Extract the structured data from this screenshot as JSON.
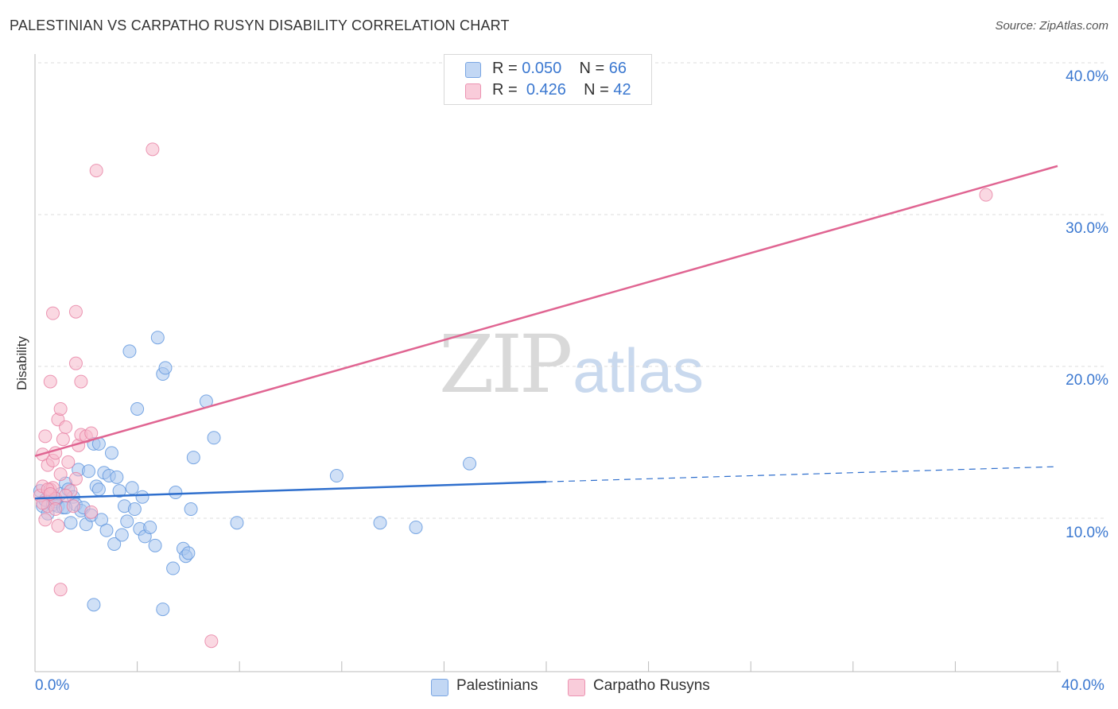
{
  "title": "PALESTINIAN VS CARPATHO RUSYN DISABILITY CORRELATION CHART",
  "source": "Source: ZipAtlas.com",
  "watermark": {
    "zip": "ZIP",
    "atlas": "atlas"
  },
  "legend": {
    "rows": [
      {
        "r_label": "R = ",
        "r_value": "0.050",
        "n_label": "N = ",
        "n_value": "66",
        "color": "#a9c6ef"
      },
      {
        "r_label": "R = ",
        "r_value": "0.426",
        "n_label": "N = ",
        "n_value": "42",
        "color": "#f5b8cb"
      }
    ]
  },
  "bottom_legend": [
    {
      "label": "Palestinians",
      "color": "#a9c6ef"
    },
    {
      "label": "Carpatho Rusyns",
      "color": "#f5b8cb"
    }
  ],
  "chart_data": {
    "type": "scatter",
    "title": "PALESTINIAN VS CARPATHO RUSYN DISABILITY CORRELATION CHART",
    "xlabel": "",
    "ylabel": "Disability",
    "xlim": [
      0,
      40
    ],
    "ylim": [
      0,
      40
    ],
    "x_tick_labels": [
      "0.0%",
      "40.0%"
    ],
    "y_ticks": [
      10,
      20,
      30,
      40
    ],
    "y_tick_labels": [
      "10.0%",
      "20.0%",
      "30.0%",
      "40.0%"
    ],
    "grid": true,
    "series": [
      {
        "name": "Palestinians",
        "color": "#5b93dd",
        "fill": "#a9c6ef",
        "trend": {
          "x0": 0,
          "y0": 11.3,
          "x1": 20,
          "y1": 12.4,
          "dash_x1": 40,
          "dash_y1": 13.4,
          "color": "#2f6fcd"
        },
        "points": [
          [
            0.2,
            11.8
          ],
          [
            0.3,
            10.8
          ],
          [
            0.4,
            11.2
          ],
          [
            0.5,
            10.3
          ],
          [
            0.6,
            11.5
          ],
          [
            0.7,
            10.9
          ],
          [
            0.8,
            11.1
          ],
          [
            0.9,
            10.8
          ],
          [
            1.0,
            11.6
          ],
          [
            1.1,
            10.7
          ],
          [
            1.2,
            12.3
          ],
          [
            1.3,
            11.9
          ],
          [
            1.4,
            9.7
          ],
          [
            1.5,
            11.4
          ],
          [
            1.6,
            10.9
          ],
          [
            1.7,
            13.2
          ],
          [
            1.8,
            10.5
          ],
          [
            1.9,
            10.7
          ],
          [
            2.0,
            9.6
          ],
          [
            2.1,
            13.1
          ],
          [
            2.2,
            10.2
          ],
          [
            2.3,
            14.9
          ],
          [
            2.4,
            12.1
          ],
          [
            2.5,
            11.9
          ],
          [
            2.6,
            9.9
          ],
          [
            2.7,
            13.0
          ],
          [
            2.8,
            9.2
          ],
          [
            2.9,
            12.8
          ],
          [
            3.0,
            14.3
          ],
          [
            3.1,
            8.3
          ],
          [
            3.2,
            12.7
          ],
          [
            3.3,
            11.8
          ],
          [
            3.4,
            8.9
          ],
          [
            3.5,
            10.8
          ],
          [
            3.6,
            9.8
          ],
          [
            3.7,
            21.0
          ],
          [
            3.8,
            12.0
          ],
          [
            3.9,
            10.6
          ],
          [
            4.0,
            17.2
          ],
          [
            4.1,
            9.3
          ],
          [
            4.2,
            11.4
          ],
          [
            4.3,
            8.8
          ],
          [
            4.5,
            9.4
          ],
          [
            4.7,
            8.2
          ],
          [
            4.8,
            21.9
          ],
          [
            5.0,
            19.5
          ],
          [
            5.1,
            19.9
          ],
          [
            5.4,
            6.7
          ],
          [
            5.5,
            11.7
          ],
          [
            5.8,
            8.0
          ],
          [
            5.9,
            7.5
          ],
          [
            6.0,
            7.7
          ],
          [
            6.1,
            10.6
          ],
          [
            6.2,
            14.0
          ],
          [
            6.7,
            17.7
          ],
          [
            7.0,
            15.3
          ],
          [
            7.9,
            9.7
          ],
          [
            11.8,
            12.8
          ],
          [
            13.5,
            9.7
          ],
          [
            14.9,
            9.4
          ],
          [
            17.0,
            13.6
          ],
          [
            2.3,
            4.3
          ],
          [
            5.0,
            4.0
          ],
          [
            1.2,
            10.7
          ],
          [
            2.5,
            14.9
          ],
          [
            0.8,
            11.3
          ]
        ]
      },
      {
        "name": "Carpatho Rusyns",
        "color": "#e77fa3",
        "fill": "#f5b8cb",
        "trend": {
          "x0": 0,
          "y0": 14.1,
          "x1": 40,
          "y1": 33.2,
          "color": "#e06592"
        },
        "points": [
          [
            0.2,
            11.5
          ],
          [
            0.3,
            12.1
          ],
          [
            0.3,
            14.2
          ],
          [
            0.4,
            15.4
          ],
          [
            0.5,
            10.8
          ],
          [
            0.5,
            13.5
          ],
          [
            0.6,
            11.9
          ],
          [
            0.7,
            12.0
          ],
          [
            0.7,
            13.8
          ],
          [
            0.8,
            11.3
          ],
          [
            0.8,
            14.3
          ],
          [
            0.9,
            16.5
          ],
          [
            1.0,
            17.2
          ],
          [
            1.0,
            12.9
          ],
          [
            1.1,
            15.2
          ],
          [
            1.2,
            16.0
          ],
          [
            1.3,
            13.7
          ],
          [
            1.4,
            11.8
          ],
          [
            1.5,
            10.8
          ],
          [
            1.6,
            12.6
          ],
          [
            1.7,
            14.8
          ],
          [
            1.8,
            15.5
          ],
          [
            2.0,
            15.4
          ],
          [
            2.2,
            15.6
          ],
          [
            0.6,
            19.0
          ],
          [
            1.6,
            20.2
          ],
          [
            1.8,
            19.0
          ],
          [
            0.7,
            23.5
          ],
          [
            1.6,
            23.6
          ],
          [
            2.4,
            32.9
          ],
          [
            4.6,
            34.3
          ],
          [
            37.2,
            31.3
          ],
          [
            0.9,
            9.5
          ],
          [
            1.0,
            5.3
          ],
          [
            6.9,
            1.9
          ],
          [
            0.4,
            9.9
          ],
          [
            2.2,
            10.4
          ],
          [
            0.5,
            11.9
          ],
          [
            1.2,
            11.5
          ],
          [
            0.3,
            11.0
          ],
          [
            0.6,
            11.6
          ],
          [
            0.8,
            10.6
          ]
        ]
      }
    ]
  }
}
